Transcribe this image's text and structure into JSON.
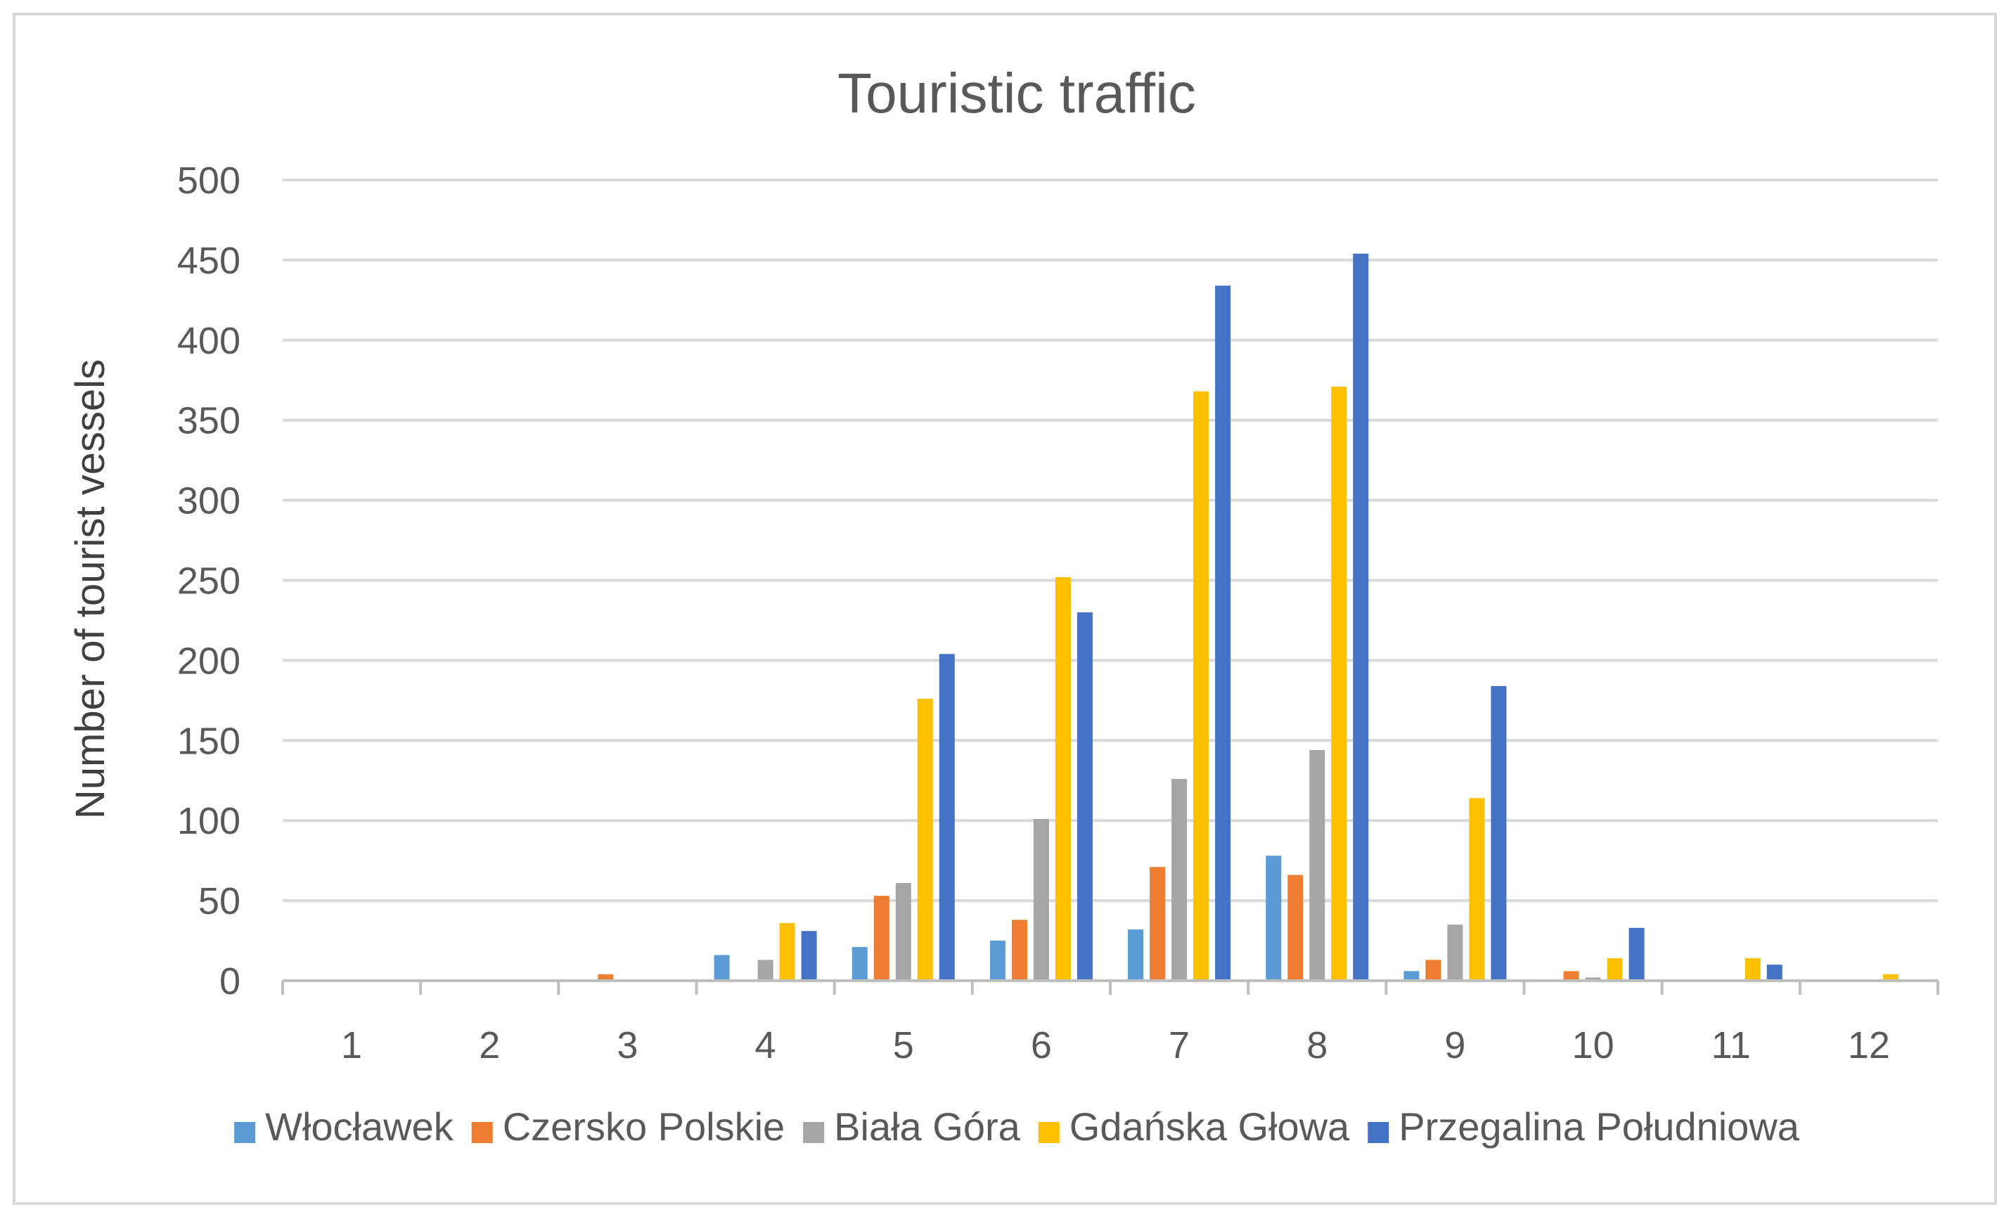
{
  "chart_data": {
    "type": "bar",
    "title": "Touristic traffic",
    "xlabel": "",
    "ylabel": "Number of  tourist vessels",
    "categories": [
      "1",
      "2",
      "3",
      "4",
      "5",
      "6",
      "7",
      "8",
      "9",
      "10",
      "11",
      "12"
    ],
    "ylim": [
      0,
      500
    ],
    "yticks": [
      0,
      50,
      100,
      150,
      200,
      250,
      300,
      350,
      400,
      450,
      500
    ],
    "grid": true,
    "legend_position": "bottom",
    "series": [
      {
        "name": "Włocławek",
        "color": "#5b9bd5",
        "values": [
          0,
          0,
          0,
          16,
          21,
          25,
          32,
          78,
          6,
          0,
          0,
          0
        ]
      },
      {
        "name": "Czersko Polskie",
        "color": "#ed7d31",
        "values": [
          0,
          0,
          4,
          0,
          53,
          38,
          71,
          66,
          13,
          6,
          0,
          0
        ]
      },
      {
        "name": "Biała Góra",
        "color": "#a5a5a5",
        "values": [
          0,
          0,
          0,
          13,
          61,
          101,
          126,
          144,
          35,
          2,
          0,
          0
        ]
      },
      {
        "name": "Gdańska Głowa",
        "color": "#ffc000",
        "values": [
          0,
          0,
          0,
          36,
          176,
          252,
          368,
          371,
          114,
          14,
          14,
          4
        ]
      },
      {
        "name": "Przegalina Południowa",
        "color": "#4472c4",
        "values": [
          0,
          0,
          0,
          31,
          204,
          230,
          434,
          454,
          184,
          33,
          10,
          0
        ]
      }
    ]
  }
}
